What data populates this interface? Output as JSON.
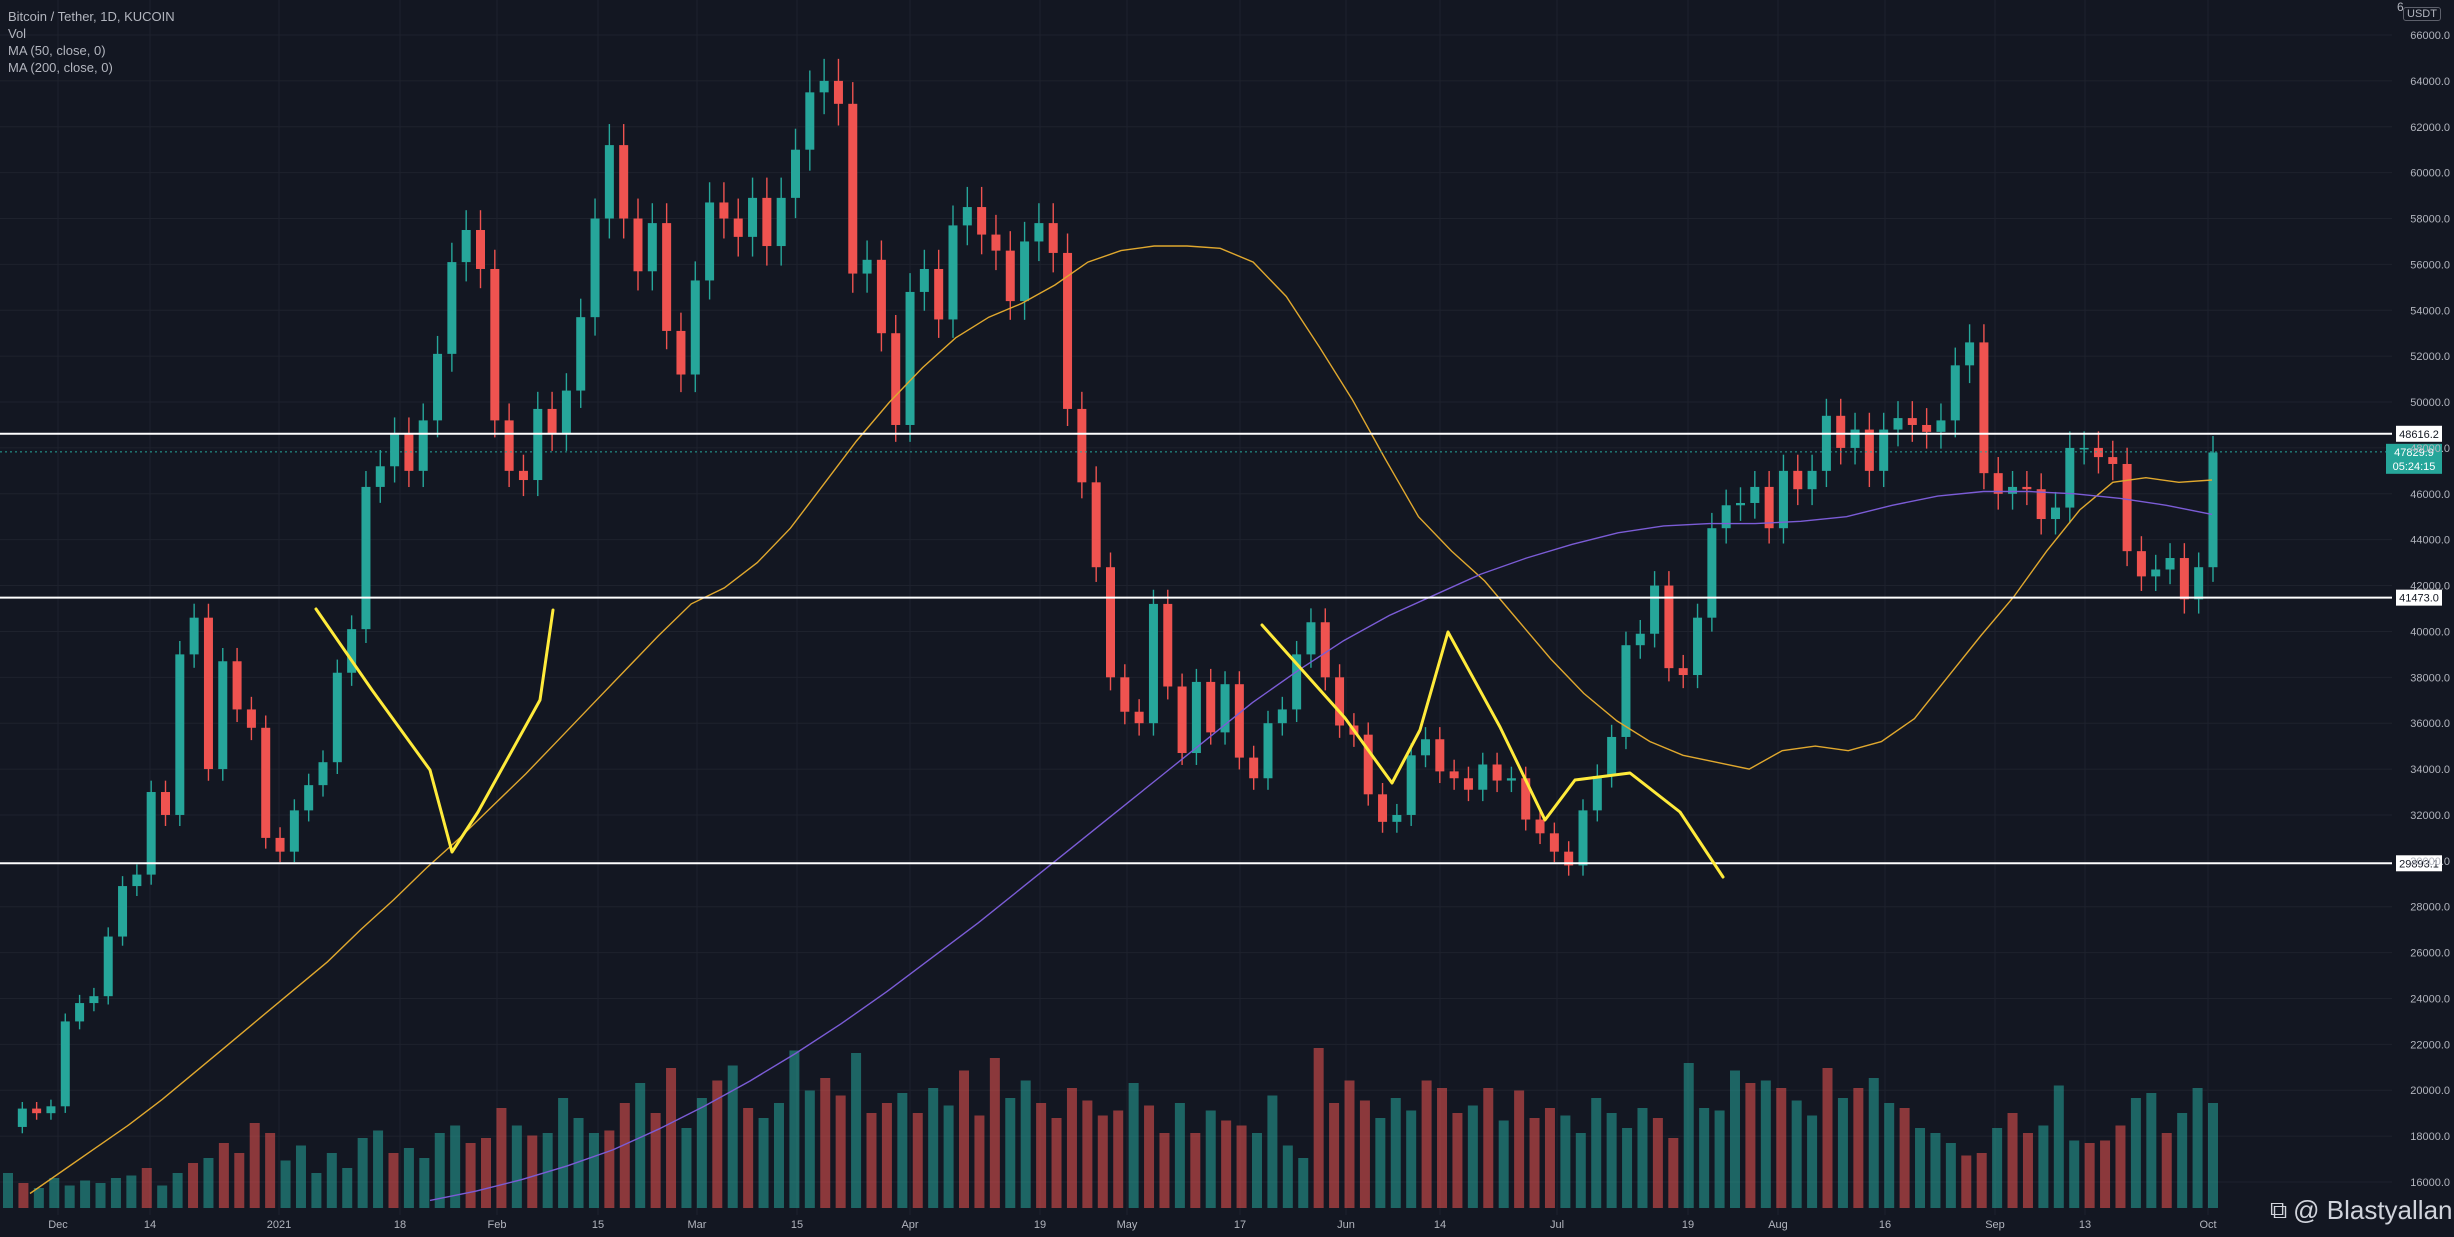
{
  "legend": {
    "title": "Bitcoin / Tether, 1D, KUCOIN",
    "vol": "Vol",
    "ma50": "MA (50, close, 0)",
    "ma200": "MA (200, close, 0)"
  },
  "axis_top_label": "6",
  "currency_badge": "USDT",
  "watermark": "@ Blastyallan",
  "colors": {
    "background": "#131722",
    "up": "#26a69a",
    "down": "#ef5350",
    "ma50": "#e0a82e",
    "ma200": "#7b5cd6",
    "drawing": "#ffeb3b",
    "level_line": "#ffffff"
  },
  "chart_data": {
    "type": "candlestick",
    "symbol": "BTC/USDT",
    "interval": "1D",
    "exchange": "KUCOIN",
    "ylim": [
      15000,
      67000
    ],
    "y_ticks": [
      "16000.0",
      "18000.0",
      "20000.0",
      "22000.0",
      "24000.0",
      "26000.0",
      "28000.0",
      "30000.0",
      "32000.0",
      "34000.0",
      "36000.0",
      "38000.0",
      "40000.0",
      "42000.0",
      "44000.0",
      "46000.0",
      "48000.0",
      "50000.0",
      "52000.0",
      "54000.0",
      "56000.0",
      "58000.0",
      "60000.0",
      "62000.0",
      "64000.0",
      "66000.0"
    ],
    "x_ticks": [
      "Dec",
      "14",
      "2021",
      "18",
      "Feb",
      "15",
      "Mar",
      "15",
      "Apr",
      "19",
      "May",
      "17",
      "Jun",
      "14",
      "Jul",
      "19",
      "Aug",
      "16",
      "Sep",
      "13",
      "Oct"
    ],
    "horizontal_levels": [
      48616.2,
      41473.0,
      29893.1
    ],
    "current_price": "47829.9",
    "countdown": "05:24:15",
    "key_prices_path": [
      18400,
      19200,
      19000,
      19300,
      23000,
      23800,
      24100,
      26700,
      28900,
      29400,
      33000,
      32000,
      39000,
      40600,
      34000,
      38700,
      36600,
      35800,
      31000,
      30400,
      32200,
      33300,
      34300,
      38200,
      40100,
      46300,
      47200,
      48600,
      47000,
      49200,
      52100,
      56100,
      57500,
      55800,
      49200,
      47000,
      46600,
      49700,
      48600,
      50500,
      53700,
      58000,
      61200,
      58000,
      55700,
      57800,
      53100,
      51200,
      55300,
      58700,
      58000,
      57200,
      58900,
      56800,
      58900,
      61000,
      63500,
      64000,
      63000,
      55600,
      56200,
      53000,
      49000,
      54800,
      55800,
      53600,
      57700,
      58500,
      57300,
      56600,
      54400,
      57000,
      57800,
      56500,
      49700,
      46500,
      42800,
      38000,
      36500,
      36000,
      41200,
      37600,
      34700,
      37800,
      35600,
      37700,
      34500,
      33600,
      36000,
      36600,
      39000,
      40400,
      38000,
      35900,
      35500,
      32900,
      31700,
      32000,
      34600,
      35300,
      33900,
      33600,
      33100,
      34200,
      33500,
      33600,
      31800,
      31200,
      30400,
      29800,
      32200,
      33700,
      35400,
      39400,
      39900,
      42000,
      38400,
      38100,
      40600,
      44500,
      45500,
      45600,
      46300,
      44500,
      47000,
      46200,
      47000,
      49400,
      48000,
      48800,
      47000,
      48800,
      49300,
      49000,
      48700,
      49200,
      51600,
      52600,
      46900,
      46000,
      46300,
      46200,
      44900,
      45400,
      48000,
      48000,
      47600,
      47300,
      43500,
      42400,
      42700,
      43200,
      41400,
      42800,
      47800
    ],
    "ma50_path": [
      15500,
      16500,
      17500,
      18500,
      19600,
      20800,
      22000,
      23200,
      24400,
      25600,
      27000,
      28300,
      29700,
      31000,
      32400,
      33800,
      35300,
      36800,
      38300,
      39800,
      41200,
      41900,
      43000,
      44500,
      46400,
      48300,
      50000,
      51500,
      52800,
      53700,
      54300,
      55100,
      56100,
      56600,
      56800,
      56800,
      56700,
      56100,
      54600,
      52400,
      50100,
      47500,
      45000,
      43500,
      42200,
      40500,
      38800,
      37300,
      36100,
      35200,
      34600,
      34300,
      34000,
      34800,
      35000,
      34800,
      35200,
      36200,
      38000,
      39800,
      41500,
      43500,
      45300,
      46500,
      46700,
      46500,
      46600
    ],
    "ma200_path": [
      15200,
      15600,
      16100,
      16700,
      17400,
      18300,
      19300,
      20400,
      21600,
      22900,
      24300,
      25800,
      27300,
      28900,
      30500,
      32100,
      33700,
      35300,
      36900,
      38300,
      39600,
      40700,
      41600,
      42500,
      43200,
      43800,
      44300,
      44600,
      44700,
      44700,
      44800,
      45000,
      45500,
      45900,
      46100,
      46100,
      46000,
      45800,
      45500,
      45100
    ],
    "volume_ylim": [
      0,
      100
    ],
    "volume_path": [
      14,
      10,
      8,
      12,
      9,
      11,
      10,
      12,
      13,
      16,
      9,
      14,
      18,
      20,
      26,
      22,
      34,
      30,
      19,
      25,
      14,
      22,
      16,
      28,
      31,
      22,
      24,
      20,
      30,
      33,
      26,
      28,
      40,
      33,
      29,
      30,
      44,
      36,
      30,
      31,
      42,
      50,
      38,
      56,
      32,
      44,
      51,
      57,
      40,
      36,
      42,
      63,
      47,
      52,
      45,
      62,
      38,
      42,
      46,
      38,
      48,
      41,
      55,
      37,
      60,
      44,
      51,
      42,
      36,
      48,
      43,
      37,
      39,
      50,
      41,
      30,
      42,
      30,
      39,
      35,
      33,
      30,
      45,
      25,
      20,
      64,
      42,
      51,
      43,
      36,
      44,
      39,
      51,
      48,
      38,
      41,
      48,
      35,
      47,
      36,
      40,
      37,
      30,
      44,
      38,
      32,
      40,
      36,
      28,
      58,
      40,
      39,
      55,
      50,
      51,
      48,
      43,
      37,
      56,
      44,
      48,
      52,
      42,
      40,
      32,
      30,
      26,
      21,
      22,
      32,
      38,
      30,
      33,
      49,
      27,
      26,
      27,
      33,
      44,
      46,
      30,
      38,
      48,
      42
    ],
    "drawings": {
      "type": "polyline",
      "segments": [
        [
          [
            41500,
            0
          ],
          [
            30400,
            1
          ]
        ],
        [
          [
            30400,
            0
          ],
          [
            41500,
            1
          ]
        ],
        [
          [
            40300,
            0
          ],
          [
            33500,
            1
          ]
        ],
        [
          [
            33500,
            0
          ],
          [
            40500,
            1
          ]
        ],
        [
          [
            40500,
            0
          ],
          [
            32000,
            1
          ]
        ],
        [
          [
            32000,
            0
          ],
          [
            34300,
            1
          ]
        ],
        [
          [
            34300,
            0
          ],
          [
            29600,
            1
          ]
        ]
      ]
    }
  }
}
